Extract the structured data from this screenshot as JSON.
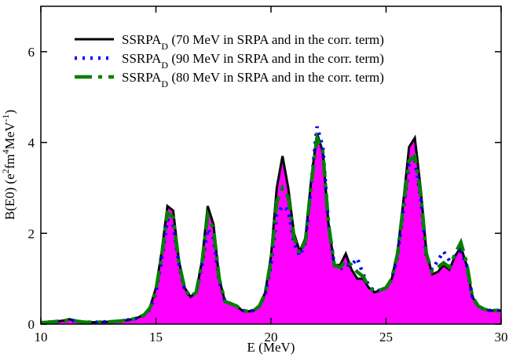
{
  "chart_data": {
    "type": "line",
    "xlabel": "E (MeV)",
    "ylabel": [
      "B(E0) (e",
      "2",
      "fm",
      "4",
      "MeV",
      "-1",
      ")"
    ],
    "xlim": [
      10,
      30
    ],
    "xticks": [
      10,
      15,
      20,
      25,
      30
    ],
    "ylim": [
      0,
      7
    ],
    "yticks": [
      0,
      2,
      4,
      6
    ],
    "fill_color": "#ff00ff",
    "x": [
      10,
      10.25,
      10.5,
      10.75,
      11,
      11.25,
      11.5,
      11.75,
      12,
      12.25,
      12.5,
      12.75,
      13,
      13.25,
      13.5,
      13.75,
      14,
      14.25,
      14.5,
      14.75,
      15,
      15.25,
      15.5,
      15.75,
      16,
      16.25,
      16.5,
      16.75,
      17,
      17.25,
      17.5,
      17.75,
      18,
      18.25,
      18.5,
      18.75,
      19,
      19.25,
      19.5,
      19.75,
      20,
      20.25,
      20.5,
      20.75,
      21,
      21.25,
      21.5,
      21.75,
      22,
      22.25,
      22.5,
      22.75,
      23,
      23.25,
      23.5,
      23.75,
      24,
      24.25,
      24.5,
      24.75,
      25,
      25.25,
      25.5,
      25.75,
      26,
      26.25,
      26.5,
      26.75,
      27,
      27.25,
      27.5,
      27.75,
      28,
      28.25,
      28.5,
      28.75,
      29,
      29.25,
      29.5,
      29.75,
      30
    ],
    "series": [
      {
        "name": [
          "SSRPA",
          "D",
          " (70 MeV in SRPA and in the corr. term)"
        ],
        "color": "#000000",
        "style": "solid",
        "values": [
          0.03,
          0.04,
          0.05,
          0.06,
          0.08,
          0.11,
          0.07,
          0.05,
          0.04,
          0.04,
          0.04,
          0.05,
          0.05,
          0.06,
          0.07,
          0.09,
          0.11,
          0.15,
          0.22,
          0.38,
          0.8,
          1.6,
          2.6,
          2.5,
          1.4,
          0.8,
          0.6,
          0.7,
          1.4,
          2.6,
          2.2,
          1.0,
          0.5,
          0.45,
          0.4,
          0.3,
          0.28,
          0.3,
          0.4,
          0.7,
          1.5,
          3.0,
          3.7,
          3.0,
          2.0,
          1.6,
          1.9,
          3.2,
          4.2,
          3.8,
          2.2,
          1.3,
          1.3,
          1.55,
          1.2,
          1.0,
          1.0,
          0.8,
          0.7,
          0.75,
          0.8,
          1.0,
          1.6,
          2.7,
          3.9,
          4.1,
          3.0,
          1.6,
          1.1,
          1.15,
          1.3,
          1.2,
          1.5,
          1.7,
          1.3,
          0.6,
          0.4,
          0.33,
          0.3,
          0.3,
          0.3
        ]
      },
      {
        "name": [
          "SSRPA",
          "D",
          " (90 MeV in SRPA and in the corr. term)"
        ],
        "color": "#0000ff",
        "style": "dotted",
        "values": [
          0.03,
          0.04,
          0.05,
          0.06,
          0.07,
          0.09,
          0.07,
          0.05,
          0.04,
          0.04,
          0.04,
          0.05,
          0.05,
          0.06,
          0.07,
          0.09,
          0.11,
          0.14,
          0.2,
          0.34,
          0.7,
          1.4,
          2.3,
          2.2,
          1.3,
          0.75,
          0.6,
          0.7,
          1.3,
          2.1,
          1.9,
          0.95,
          0.5,
          0.45,
          0.4,
          0.3,
          0.28,
          0.3,
          0.4,
          0.65,
          1.3,
          2.4,
          2.6,
          2.5,
          1.8,
          1.5,
          1.8,
          3.1,
          4.35,
          3.9,
          2.2,
          1.3,
          1.2,
          1.3,
          1.3,
          1.45,
          1.1,
          0.85,
          0.72,
          0.75,
          0.8,
          1.0,
          1.5,
          2.5,
          3.5,
          3.6,
          2.8,
          1.5,
          1.2,
          1.4,
          1.6,
          1.4,
          1.5,
          1.6,
          1.3,
          0.6,
          0.4,
          0.33,
          0.3,
          0.3,
          0.3
        ]
      },
      {
        "name": [
          "SSRPA",
          "D",
          " (80 MeV in SRPA and in the corr. term)"
        ],
        "color": "#008000",
        "style": "dashed",
        "values": [
          0.03,
          0.04,
          0.05,
          0.06,
          0.07,
          0.1,
          0.07,
          0.05,
          0.04,
          0.04,
          0.04,
          0.05,
          0.05,
          0.06,
          0.07,
          0.09,
          0.11,
          0.14,
          0.21,
          0.36,
          0.75,
          1.5,
          2.45,
          2.35,
          1.35,
          0.78,
          0.6,
          0.7,
          1.35,
          2.4,
          2.1,
          1.0,
          0.5,
          0.45,
          0.4,
          0.3,
          0.28,
          0.3,
          0.4,
          0.68,
          1.4,
          2.7,
          3.0,
          2.8,
          1.9,
          1.55,
          1.85,
          3.1,
          4.1,
          3.8,
          2.2,
          1.3,
          1.25,
          1.4,
          1.3,
          1.15,
          1.05,
          0.82,
          0.71,
          0.75,
          0.8,
          1.0,
          1.55,
          2.6,
          3.6,
          3.7,
          2.9,
          1.55,
          1.15,
          1.25,
          1.35,
          1.25,
          1.55,
          1.8,
          1.35,
          0.6,
          0.4,
          0.33,
          0.3,
          0.3,
          0.3
        ]
      }
    ]
  }
}
